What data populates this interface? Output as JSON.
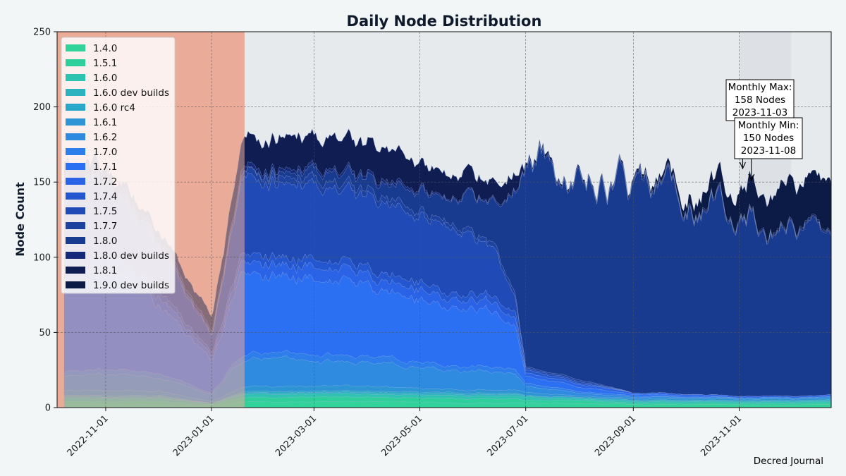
{
  "chart_data": {
    "type": "area",
    "stacked": true,
    "title": "Daily Node Distribution",
    "xlabel": "",
    "ylabel": "Node Count",
    "ylim": [
      0,
      250
    ],
    "yticks": [
      0,
      50,
      100,
      150,
      200,
      250
    ],
    "x_range": [
      "2022-10-08",
      "2023-12-24"
    ],
    "x_tick_dates": [
      "2022-11-01",
      "2023-01-01",
      "2023-03-01",
      "2023-05-01",
      "2023-07-01",
      "2023-09-01",
      "2023-11-01"
    ],
    "x_tick_labels": [
      "2022-11-01",
      "2023-01-01",
      "2023-03-01",
      "2023-05-01",
      "2023-07-01",
      "2023-09-01",
      "2023-11-01"
    ],
    "grid": true,
    "legend_position": "top-left",
    "shaded_regions": [
      {
        "start": "2022-10-04",
        "end": "2023-01-20",
        "color": "#eaac99",
        "label": ""
      },
      {
        "start": "2023-01-20",
        "end": "2023-12-24",
        "color": "#e6eaed",
        "label": ""
      },
      {
        "start": "2023-11-01",
        "end": "2023-12-01",
        "color": "#dde1e6",
        "label": ""
      }
    ],
    "colors": [
      "#31d39b",
      "#2fcf9c",
      "#2ec2b1",
      "#2db3bf",
      "#2aa6c8",
      "#2d95d4",
      "#2e8be0",
      "#2d7eea",
      "#2b6ff2",
      "#2a63e6",
      "#2457cf",
      "#204bb6",
      "#1d42a0",
      "#183a8f",
      "#14297a",
      "#0f1d52",
      "#0c1a46"
    ],
    "series_names": [
      "1.4.0",
      "1.5.1",
      "1.6.0",
      "1.6.0 dev builds",
      "1.6.0 rc4",
      "1.6.1",
      "1.6.2",
      "1.7.0",
      "1.7.1",
      "1.7.2",
      "1.7.4",
      "1.7.5",
      "1.7.7",
      "1.8.0",
      "1.8.0 dev builds",
      "1.8.1",
      "1.9.0 dev builds"
    ],
    "x": [
      "2022-10-08",
      "2022-11-01",
      "2022-12-01",
      "2023-01-01",
      "2023-01-20",
      "2023-03-01",
      "2023-04-15",
      "2023-05-15",
      "2023-06-15",
      "2023-06-25",
      "2023-07-01",
      "2023-08-01",
      "2023-09-01",
      "2023-10-01",
      "2023-11-01",
      "2023-12-01",
      "2023-12-24"
    ],
    "series": [
      {
        "name": "1.4.0",
        "values": [
          2,
          2,
          2,
          1,
          4,
          4,
          4,
          3,
          3,
          3,
          3,
          3,
          2,
          2,
          2,
          2,
          2
        ]
      },
      {
        "name": "1.5.1",
        "values": [
          2,
          2,
          2,
          1,
          3,
          3,
          3,
          3,
          3,
          3,
          2,
          2,
          1,
          1,
          1,
          1,
          1
        ]
      },
      {
        "name": "1.6.0",
        "values": [
          2,
          2,
          2,
          1,
          2,
          2,
          2,
          2,
          2,
          2,
          2,
          1,
          1,
          1,
          1,
          1,
          1
        ]
      },
      {
        "name": "1.6.0 dev builds",
        "values": [
          1,
          1,
          1,
          0,
          1,
          1,
          1,
          1,
          1,
          1,
          1,
          1,
          1,
          1,
          1,
          1,
          1
        ]
      },
      {
        "name": "1.6.0 rc4",
        "values": [
          1,
          1,
          1,
          0,
          1,
          1,
          1,
          1,
          1,
          1,
          0,
          0,
          0,
          0,
          0,
          0,
          0
        ]
      },
      {
        "name": "1.6.1",
        "values": [
          3,
          3,
          3,
          1,
          3,
          3,
          3,
          2,
          2,
          2,
          2,
          1,
          1,
          1,
          1,
          1,
          1
        ]
      },
      {
        "name": "1.6.2",
        "values": [
          10,
          12,
          9,
          4,
          19,
          16,
          15,
          13,
          12,
          11,
          4,
          2,
          1,
          1,
          1,
          1,
          1
        ]
      },
      {
        "name": "1.7.0",
        "values": [
          3,
          3,
          3,
          1,
          4,
          4,
          4,
          3,
          3,
          3,
          2,
          1,
          1,
          0,
          0,
          0,
          0
        ]
      },
      {
        "name": "1.7.1",
        "values": [
          60,
          65,
          45,
          22,
          58,
          52,
          45,
          40,
          35,
          30,
          5,
          3,
          1,
          1,
          0,
          0,
          0
        ]
      },
      {
        "name": "1.7.2",
        "values": [
          8,
          8,
          6,
          3,
          8,
          8,
          7,
          6,
          6,
          5,
          2,
          2,
          1,
          1,
          1,
          1,
          1
        ]
      },
      {
        "name": "1.7.4",
        "values": [
          5,
          5,
          4,
          2,
          5,
          5,
          5,
          4,
          4,
          4,
          2,
          1,
          0,
          0,
          0,
          0,
          0
        ]
      },
      {
        "name": "1.7.5",
        "values": [
          50,
          45,
          30,
          12,
          50,
          48,
          48,
          42,
          30,
          10,
          1,
          1,
          0,
          0,
          0,
          0,
          0
        ]
      },
      {
        "name": "1.7.7",
        "values": [
          4,
          4,
          3,
          1,
          4,
          4,
          4,
          3,
          3,
          3,
          1,
          1,
          0,
          0,
          0,
          0,
          0
        ]
      },
      {
        "name": "1.8.0",
        "values": [
          0,
          0,
          0,
          0,
          0,
          5,
          10,
          15,
          30,
          70,
          140,
          138,
          135,
          130,
          125,
          110,
          95
        ]
      },
      {
        "name": "1.8.0 dev builds",
        "values": [
          3,
          3,
          3,
          2,
          3,
          2,
          2,
          1,
          1,
          1,
          1,
          1,
          1,
          1,
          1,
          1,
          1
        ]
      },
      {
        "name": "1.8.1",
        "values": [
          10,
          5,
          5,
          10,
          20,
          20,
          20,
          16,
          14,
          12,
          2,
          1,
          1,
          1,
          1,
          1,
          1
        ]
      },
      {
        "name": "1.9.0 dev builds",
        "values": [
          0,
          0,
          0,
          0,
          0,
          0,
          0,
          0,
          0,
          0,
          0,
          0,
          1,
          5,
          20,
          30,
          35
        ]
      }
    ],
    "annotations": [
      {
        "label": "Monthly Max:\n158 Nodes\n2023-11-03",
        "date": "2023-11-03",
        "value": 158
      },
      {
        "label": "Monthly Min:\n150 Nodes\n2023-11-08",
        "date": "2023-11-08",
        "value": 150
      }
    ]
  },
  "credit": "Decred Journal"
}
